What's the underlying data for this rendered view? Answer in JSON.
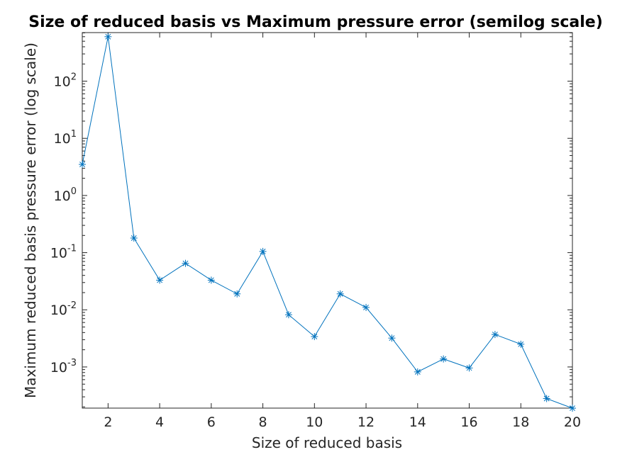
{
  "chart_data": {
    "type": "line",
    "title": "Size of reduced basis vs Maximum pressure error (semilog scale)",
    "xlabel": "Size of reduced basis",
    "ylabel": "Maximum reduced basis pressure error (log scale)",
    "xlim": [
      1,
      20
    ],
    "ylim_log10": [
      -3.72,
      2.85
    ],
    "y_scale": "log",
    "grid": false,
    "x_ticks": [
      {
        "value": 2,
        "label": "2"
      },
      {
        "value": 4,
        "label": "4"
      },
      {
        "value": 6,
        "label": "6"
      },
      {
        "value": 8,
        "label": "8"
      },
      {
        "value": 10,
        "label": "10"
      },
      {
        "value": 12,
        "label": "12"
      },
      {
        "value": 14,
        "label": "14"
      },
      {
        "value": 16,
        "label": "16"
      },
      {
        "value": 18,
        "label": "18"
      },
      {
        "value": 20,
        "label": "20"
      }
    ],
    "y_ticks": [
      {
        "exponent": -3,
        "base": "10",
        "exp_label": "-3"
      },
      {
        "exponent": -2,
        "base": "10",
        "exp_label": "-2"
      },
      {
        "exponent": -1,
        "base": "10",
        "exp_label": "-1"
      },
      {
        "exponent": 0,
        "base": "10",
        "exp_label": "0"
      },
      {
        "exponent": 1,
        "base": "10",
        "exp_label": "1"
      },
      {
        "exponent": 2,
        "base": "10",
        "exp_label": "2"
      }
    ],
    "series": [
      {
        "name": "Maximum pressure error",
        "color": "#0072BD",
        "marker": "asterisk",
        "x": [
          1,
          2,
          3,
          4,
          5,
          6,
          7,
          8,
          9,
          10,
          11,
          12,
          13,
          14,
          15,
          16,
          17,
          18,
          19,
          20
        ],
        "y": [
          3.5,
          600,
          0.18,
          0.033,
          0.065,
          0.033,
          0.019,
          0.105,
          0.0082,
          0.0034,
          0.019,
          0.011,
          0.0032,
          0.00082,
          0.00138,
          0.00096,
          0.0037,
          0.0025,
          0.00028,
          0.00019
        ]
      }
    ]
  }
}
